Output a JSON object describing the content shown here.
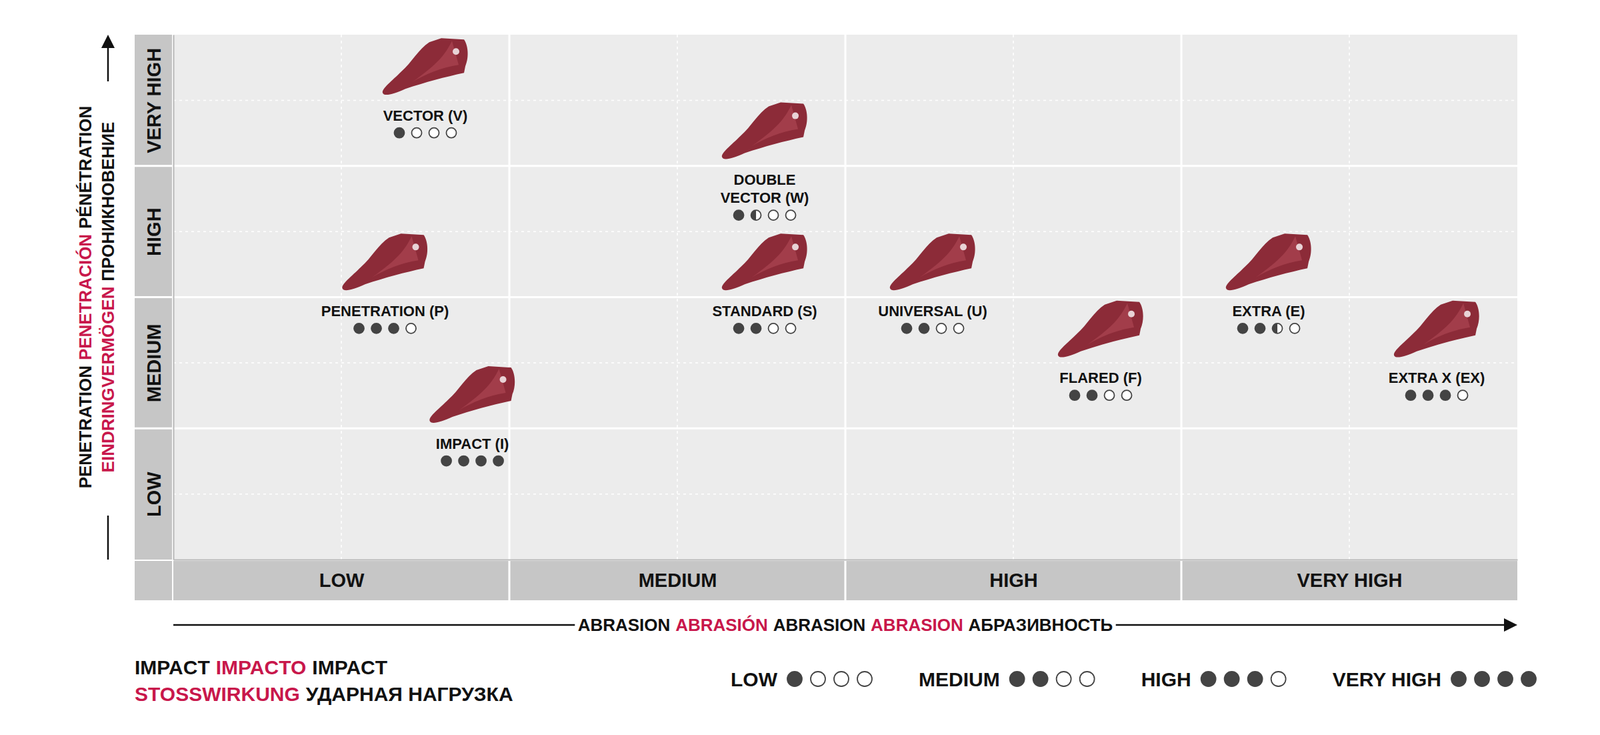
{
  "chart_data": {
    "type": "scatter",
    "marker": "tooth",
    "color": "#8c2b38",
    "grid": true,
    "legend": "bottom",
    "xlim": [
      0,
      4
    ],
    "ylim": [
      0,
      4
    ],
    "xticks": [
      {
        "value": 0.5,
        "label": "LOW"
      },
      {
        "value": 1.5,
        "label": "MEDIUM"
      },
      {
        "value": 2.5,
        "label": "HIGH"
      },
      {
        "value": 3.5,
        "label": "VERY HIGH"
      }
    ],
    "yticks": [
      {
        "value": 0.5,
        "label": "LOW"
      },
      {
        "value": 1.5,
        "label": "MEDIUM"
      },
      {
        "value": 2.5,
        "label": "HIGH"
      },
      {
        "value": 3.5,
        "label": "VERY HIGH"
      }
    ],
    "xlabel": [
      {
        "text": "ABRASION",
        "color": "#111111"
      },
      {
        "text": "ABRASIÓN",
        "color": "#c8174b"
      },
      {
        "text": "ABRASION",
        "color": "#111111"
      },
      {
        "text": "ABRASION",
        "color": "#c8174b"
      },
      {
        "text": "АБРАЗИВНОСТЬ",
        "color": "#111111"
      }
    ],
    "ylabel": [
      [
        {
          "text": "PENETRATION",
          "color": "#111111"
        },
        {
          "text": "PENETRACIÓN",
          "color": "#c8174b"
        },
        {
          "text": "PÉNÉTRATION",
          "color": "#111111"
        }
      ],
      [
        {
          "text": "EINDRINGVERMÖGEN",
          "color": "#c8174b"
        },
        {
          "text": "ПРОНИКНОВЕНИЕ",
          "color": "#111111"
        }
      ]
    ],
    "impact_lim": [
      0,
      4
    ],
    "points": [
      {
        "label": [
          "VECTOR (V)"
        ],
        "x": 0.75,
        "y": 3.75,
        "impact": 1
      },
      {
        "label": [
          "DOUBLE",
          "VECTOR (W)"
        ],
        "x": 1.76,
        "y": 3.26,
        "impact": 1.5
      },
      {
        "label": [
          "PENETRATION (P)"
        ],
        "x": 0.63,
        "y": 2.26,
        "impact": 3
      },
      {
        "label": [
          "STANDARD (S)"
        ],
        "x": 1.76,
        "y": 2.26,
        "impact": 2
      },
      {
        "label": [
          "UNIVERSAL (U)"
        ],
        "x": 2.26,
        "y": 2.26,
        "impact": 2
      },
      {
        "label": [
          "FLARED (F)"
        ],
        "x": 2.76,
        "y": 1.75,
        "impact": 2
      },
      {
        "label": [
          "EXTRA (E)"
        ],
        "x": 3.26,
        "y": 2.26,
        "impact": 2.5
      },
      {
        "label": [
          "EXTRA X (EX)"
        ],
        "x": 3.76,
        "y": 1.75,
        "impact": 3
      },
      {
        "label": [
          "IMPACT (I)"
        ],
        "x": 0.89,
        "y": 1.25,
        "impact": 4
      }
    ],
    "legend_title": [
      [
        {
          "text": "IMPACT",
          "color": "#111111"
        },
        {
          "text": "IMPACTO",
          "color": "#c8174b"
        },
        {
          "text": "IMPACT",
          "color": "#111111"
        }
      ],
      [
        {
          "text": "STOSSWIRKUNG",
          "color": "#c8174b"
        },
        {
          "text": "УДАРНАЯ НАГРУЗКА",
          "color": "#111111"
        }
      ]
    ],
    "legend_items": [
      {
        "label": "LOW",
        "impact": 1
      },
      {
        "label": "MEDIUM",
        "impact": 2
      },
      {
        "label": "HIGH",
        "impact": 3
      },
      {
        "label": "VERY HIGH",
        "impact": 4
      }
    ]
  }
}
